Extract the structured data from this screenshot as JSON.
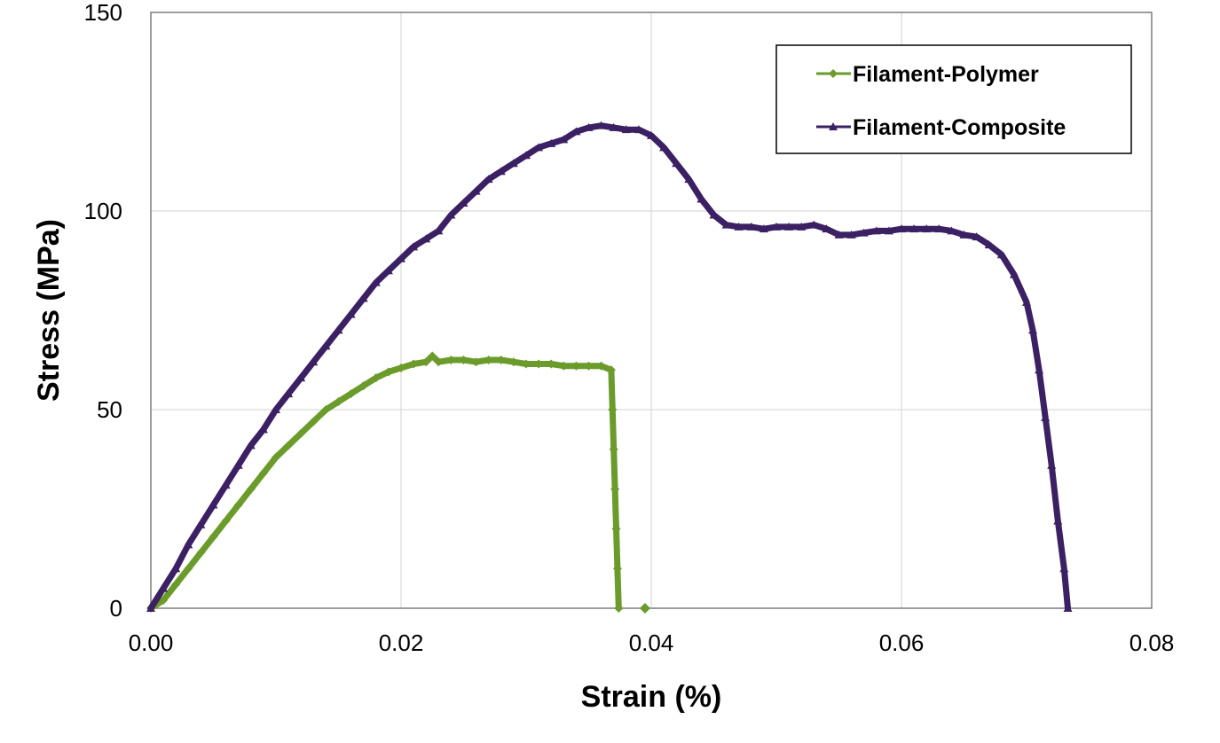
{
  "chart_data": {
    "type": "line",
    "title": "",
    "xlabel": "Strain (%)",
    "ylabel": "Stress (MPa)",
    "xlim": [
      0,
      0.08
    ],
    "ylim": [
      0,
      150
    ],
    "x_ticks": [
      "0.00",
      "0.02",
      "0.04",
      "0.06",
      "0.08"
    ],
    "y_ticks": [
      "0",
      "50",
      "100",
      "150"
    ],
    "x_tick_values": [
      0,
      0.02,
      0.04,
      0.06,
      0.08
    ],
    "y_tick_values": [
      0,
      50,
      100,
      150
    ],
    "grid": true,
    "legend_position": "top-right",
    "series": [
      {
        "name": "Filament-Polymer",
        "color": "#6b9b2a",
        "marker": "diamond",
        "points": [
          [
            0,
            0
          ],
          [
            0.001,
            2
          ],
          [
            0.002,
            6
          ],
          [
            0.003,
            10
          ],
          [
            0.004,
            14
          ],
          [
            0.005,
            18
          ],
          [
            0.006,
            22
          ],
          [
            0.007,
            26
          ],
          [
            0.008,
            30
          ],
          [
            0.009,
            34
          ],
          [
            0.01,
            38
          ],
          [
            0.011,
            41
          ],
          [
            0.012,
            44
          ],
          [
            0.013,
            47
          ],
          [
            0.014,
            50
          ],
          [
            0.015,
            52
          ],
          [
            0.016,
            54
          ],
          [
            0.017,
            56
          ],
          [
            0.018,
            58
          ],
          [
            0.019,
            59.5
          ],
          [
            0.02,
            60.5
          ],
          [
            0.021,
            61.5
          ],
          [
            0.022,
            62
          ],
          [
            0.0225,
            63.5
          ],
          [
            0.023,
            62
          ],
          [
            0.024,
            62.5
          ],
          [
            0.025,
            62.5
          ],
          [
            0.026,
            62
          ],
          [
            0.027,
            62.5
          ],
          [
            0.028,
            62.5
          ],
          [
            0.029,
            62
          ],
          [
            0.03,
            61.5
          ],
          [
            0.031,
            61.5
          ],
          [
            0.032,
            61.5
          ],
          [
            0.033,
            61
          ],
          [
            0.034,
            61
          ],
          [
            0.035,
            61
          ],
          [
            0.036,
            61
          ],
          [
            0.0368,
            60
          ],
          [
            0.0369,
            50
          ],
          [
            0.037,
            40
          ],
          [
            0.0371,
            30
          ],
          [
            0.0372,
            20
          ],
          [
            0.0373,
            10
          ],
          [
            0.0374,
            0
          ]
        ],
        "isolated_points": [
          [
            0.0395,
            0
          ]
        ]
      },
      {
        "name": "Filament-Composite",
        "color": "#3b2163",
        "marker": "triangle",
        "points": [
          [
            0,
            0
          ],
          [
            0.001,
            5
          ],
          [
            0.002,
            10
          ],
          [
            0.003,
            16
          ],
          [
            0.004,
            21
          ],
          [
            0.005,
            26
          ],
          [
            0.006,
            31
          ],
          [
            0.007,
            36
          ],
          [
            0.008,
            41
          ],
          [
            0.009,
            45
          ],
          [
            0.01,
            50
          ],
          [
            0.011,
            54
          ],
          [
            0.012,
            58
          ],
          [
            0.013,
            62
          ],
          [
            0.014,
            66
          ],
          [
            0.015,
            70
          ],
          [
            0.016,
            74
          ],
          [
            0.017,
            78
          ],
          [
            0.018,
            82
          ],
          [
            0.019,
            85
          ],
          [
            0.02,
            88
          ],
          [
            0.021,
            91
          ],
          [
            0.022,
            93
          ],
          [
            0.023,
            95
          ],
          [
            0.024,
            99
          ],
          [
            0.025,
            102
          ],
          [
            0.026,
            105
          ],
          [
            0.027,
            108
          ],
          [
            0.028,
            110
          ],
          [
            0.029,
            112
          ],
          [
            0.03,
            114
          ],
          [
            0.031,
            116
          ],
          [
            0.032,
            117
          ],
          [
            0.033,
            118
          ],
          [
            0.034,
            120
          ],
          [
            0.035,
            121
          ],
          [
            0.036,
            121.5
          ],
          [
            0.037,
            121
          ],
          [
            0.038,
            120.5
          ],
          [
            0.039,
            120.5
          ],
          [
            0.04,
            119
          ],
          [
            0.041,
            116
          ],
          [
            0.042,
            112
          ],
          [
            0.043,
            108
          ],
          [
            0.044,
            103
          ],
          [
            0.045,
            99
          ],
          [
            0.046,
            96.5
          ],
          [
            0.047,
            96
          ],
          [
            0.048,
            96
          ],
          [
            0.049,
            95.5
          ],
          [
            0.05,
            96
          ],
          [
            0.051,
            96
          ],
          [
            0.052,
            96
          ],
          [
            0.053,
            96.5
          ],
          [
            0.054,
            95.5
          ],
          [
            0.055,
            94
          ],
          [
            0.056,
            94
          ],
          [
            0.057,
            94.5
          ],
          [
            0.058,
            95
          ],
          [
            0.059,
            95
          ],
          [
            0.06,
            95.5
          ],
          [
            0.061,
            95.5
          ],
          [
            0.062,
            95.5
          ],
          [
            0.063,
            95.5
          ],
          [
            0.064,
            95
          ],
          [
            0.065,
            94
          ],
          [
            0.066,
            93.5
          ],
          [
            0.067,
            91.5
          ],
          [
            0.068,
            89
          ],
          [
            0.069,
            84
          ],
          [
            0.07,
            77
          ],
          [
            0.0705,
            70
          ],
          [
            0.071,
            60
          ],
          [
            0.0715,
            48
          ],
          [
            0.072,
            36
          ],
          [
            0.0725,
            22
          ],
          [
            0.073,
            10
          ],
          [
            0.0733,
            0
          ]
        ]
      }
    ]
  }
}
